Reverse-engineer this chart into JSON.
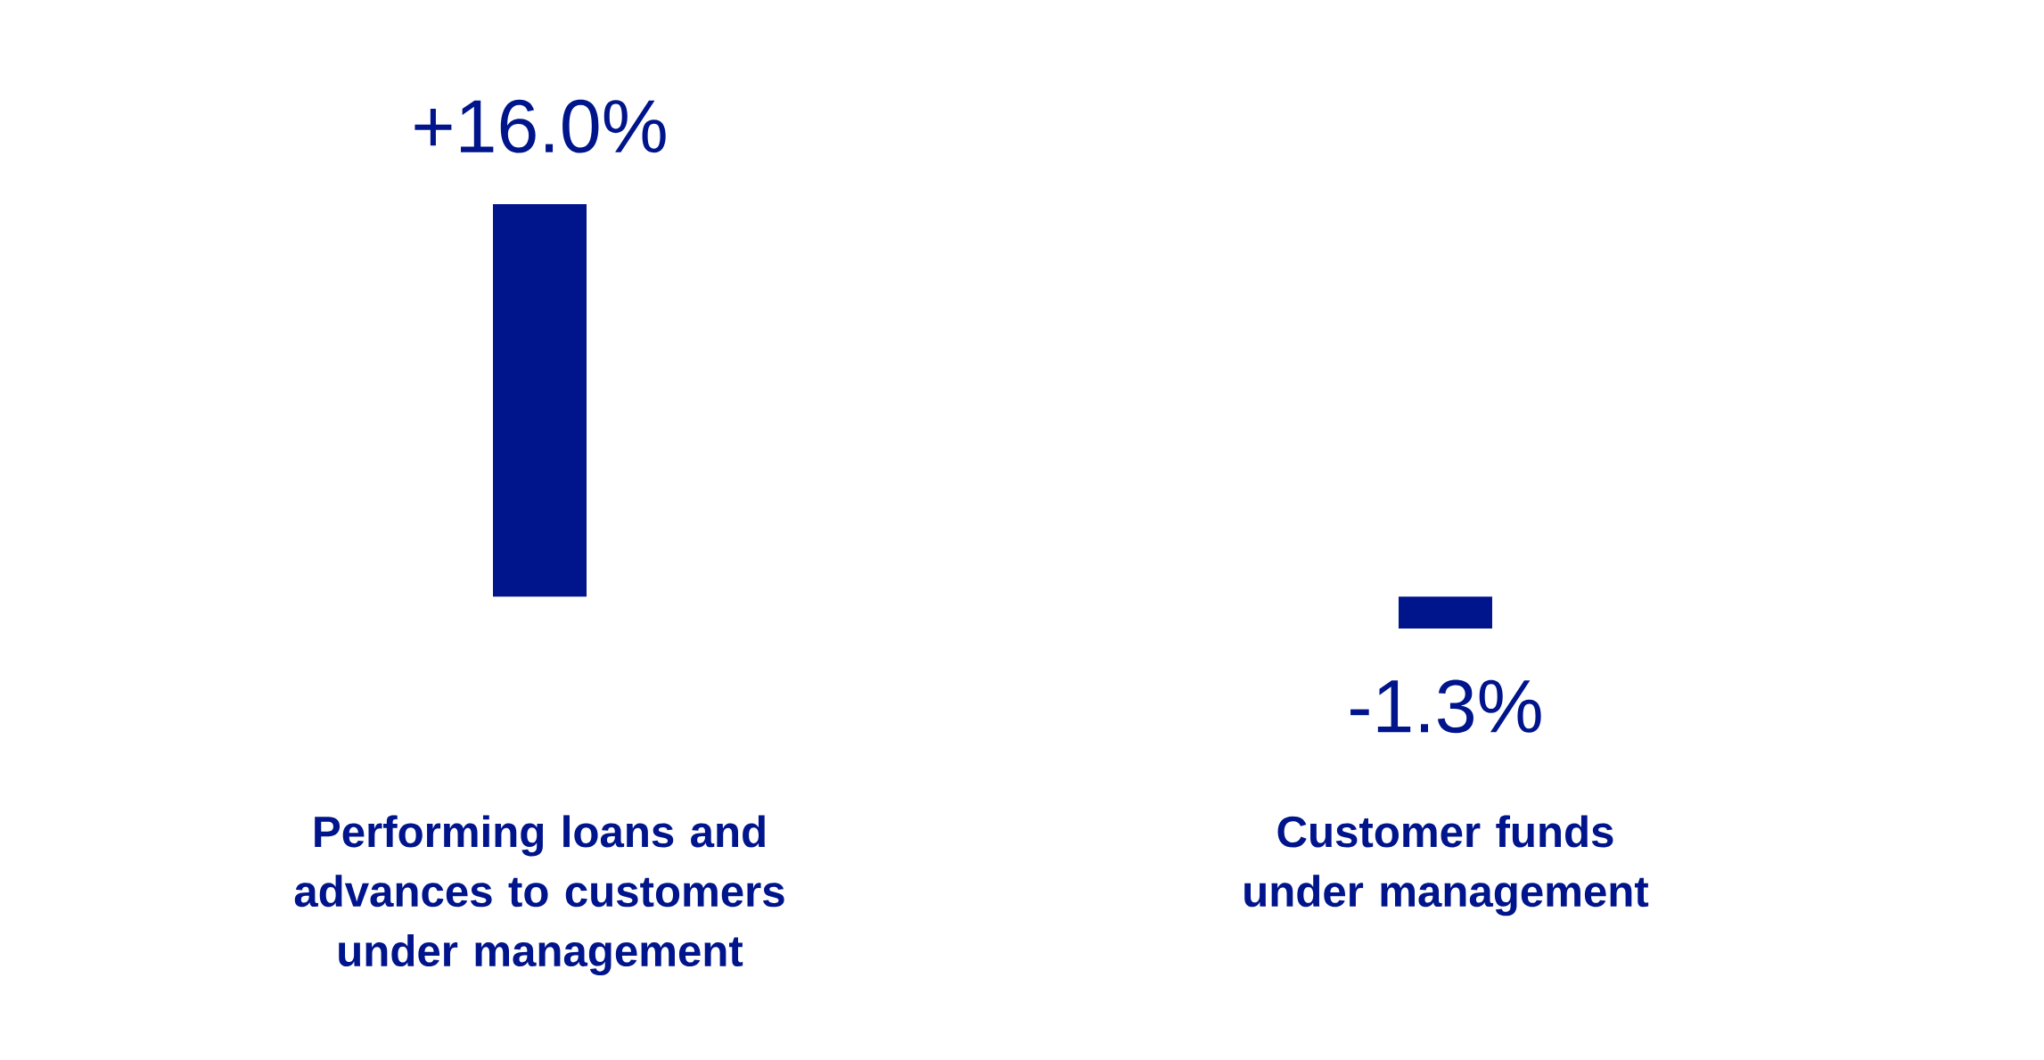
{
  "chart_data": {
    "type": "bar",
    "categories": [
      "Performing loans and advances to customers under management",
      "Customer funds under management"
    ],
    "values": [
      16.0,
      -1.3
    ],
    "value_labels": [
      "+16.0%",
      "-1.3%"
    ],
    "color": "#00148c"
  }
}
